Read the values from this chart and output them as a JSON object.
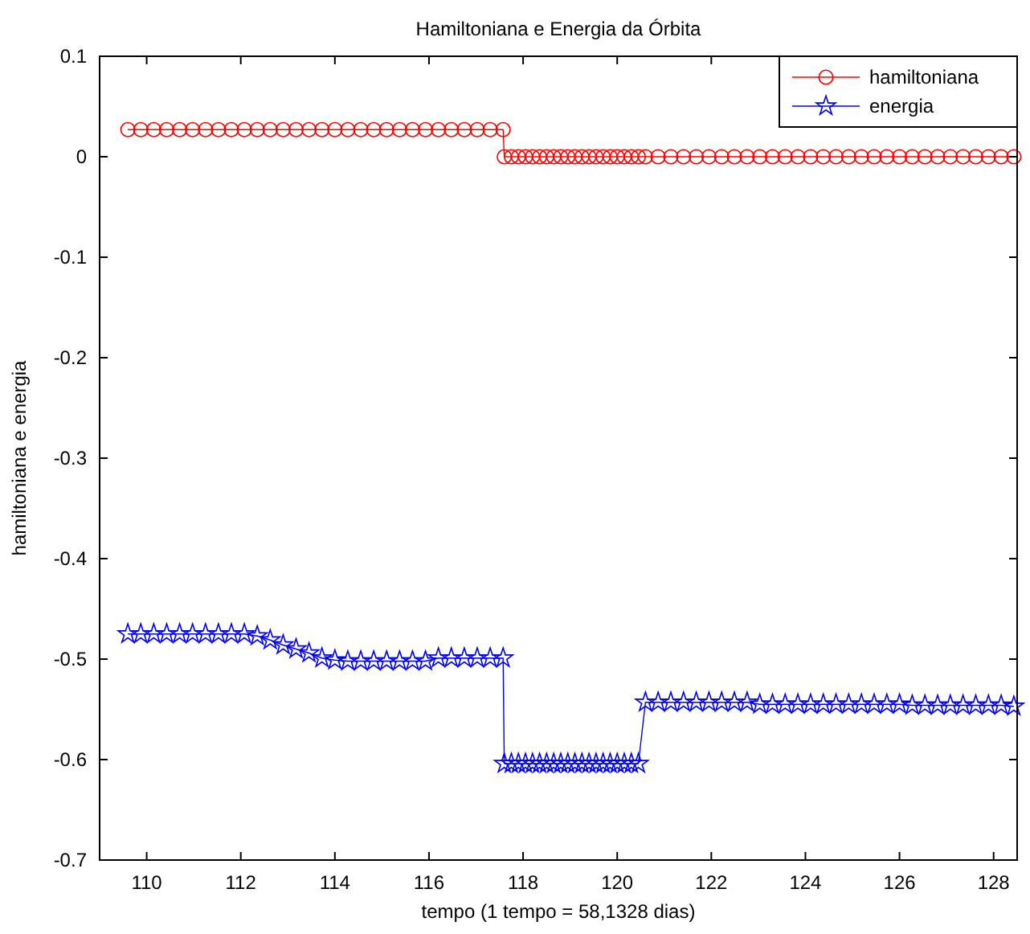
{
  "chart_data": {
    "type": "line",
    "title": "Hamiltoniana e Energia da Órbita",
    "xlabel": "tempo (1 tempo = 58,1328 dias)",
    "ylabel": "hamiltoniana e energia",
    "x": [
      109.6,
      109.875,
      110.15,
      110.425,
      110.7,
      110.975,
      111.25,
      111.525,
      111.8,
      112.075,
      112.35,
      112.625,
      112.9,
      113.175,
      113.45,
      113.725,
      114,
      114.275,
      114.55,
      114.825,
      115.1,
      115.375,
      115.65,
      115.925,
      116.2,
      116.475,
      116.75,
      117.025,
      117.3,
      117.575,
      117.6,
      117.75,
      117.9,
      118.05,
      118.2,
      118.35,
      118.5,
      118.65,
      118.8,
      118.95,
      119.1,
      119.25,
      119.4,
      119.55,
      119.7,
      119.85,
      120,
      120.15,
      120.3,
      120.45,
      120.6,
      120.87,
      121.14,
      121.41,
      121.68,
      121.95,
      122.22,
      122.49,
      122.76,
      123.03,
      123.3,
      123.57,
      123.84,
      124.11,
      124.38,
      124.65,
      124.92,
      125.19,
      125.46,
      125.73,
      126,
      126.27,
      126.54,
      126.81,
      127.08,
      127.35,
      127.62,
      127.89,
      128.16,
      128.43
    ],
    "series": [
      {
        "name": "hamiltoniana",
        "color": "#ff0000",
        "marker": "circle",
        "values": [
          0.027,
          0.027,
          0.027,
          0.027,
          0.027,
          0.027,
          0.027,
          0.027,
          0.027,
          0.027,
          0.027,
          0.027,
          0.027,
          0.027,
          0.027,
          0.027,
          0.027,
          0.027,
          0.027,
          0.027,
          0.027,
          0.027,
          0.027,
          0.027,
          0.027,
          0.027,
          0.027,
          0.027,
          0.027,
          0.027,
          0,
          0,
          0,
          0,
          0,
          0,
          0,
          0,
          0,
          0,
          0,
          0,
          0,
          0,
          0,
          0,
          0,
          0,
          0,
          0,
          0,
          0,
          0,
          0,
          0,
          0,
          0,
          0,
          0,
          0,
          0,
          0,
          0,
          0,
          0,
          0,
          0,
          0,
          0,
          0,
          0,
          0,
          0,
          0,
          0,
          0,
          0,
          0,
          0,
          0
        ]
      },
      {
        "name": "energia",
        "color": "#0000ff",
        "marker": "star",
        "values": [
          -0.475,
          -0.475,
          -0.475,
          -0.475,
          -0.475,
          -0.475,
          -0.475,
          -0.475,
          -0.475,
          -0.475,
          -0.477,
          -0.481,
          -0.486,
          -0.49,
          -0.494,
          -0.499,
          -0.501,
          -0.502,
          -0.502,
          -0.502,
          -0.502,
          -0.502,
          -0.502,
          -0.502,
          -0.499,
          -0.499,
          -0.499,
          -0.499,
          -0.499,
          -0.499,
          -0.604,
          -0.604,
          -0.604,
          -0.604,
          -0.604,
          -0.604,
          -0.604,
          -0.604,
          -0.604,
          -0.604,
          -0.604,
          -0.604,
          -0.604,
          -0.604,
          -0.604,
          -0.604,
          -0.604,
          -0.604,
          -0.604,
          -0.604,
          -0.543,
          -0.543,
          -0.543,
          -0.543,
          -0.543,
          -0.543,
          -0.543,
          -0.543,
          -0.543,
          -0.545,
          -0.545,
          -0.545,
          -0.545,
          -0.545,
          -0.545,
          -0.545,
          -0.545,
          -0.545,
          -0.545,
          -0.545,
          -0.545,
          -0.546,
          -0.546,
          -0.546,
          -0.546,
          -0.546,
          -0.546,
          -0.546,
          -0.546,
          -0.547
        ]
      }
    ],
    "xlim": [
      109,
      128.5
    ],
    "xticks": [
      110,
      112,
      114,
      116,
      118,
      120,
      122,
      124,
      126,
      128
    ],
    "ylim": [
      -0.7,
      0.1
    ],
    "yticks": [
      -0.7,
      -0.6,
      -0.5,
      -0.4,
      -0.3,
      -0.2,
      -0.1,
      0,
      0.1
    ],
    "grid": false,
    "legend": "top right",
    "line_style": "solid"
  }
}
